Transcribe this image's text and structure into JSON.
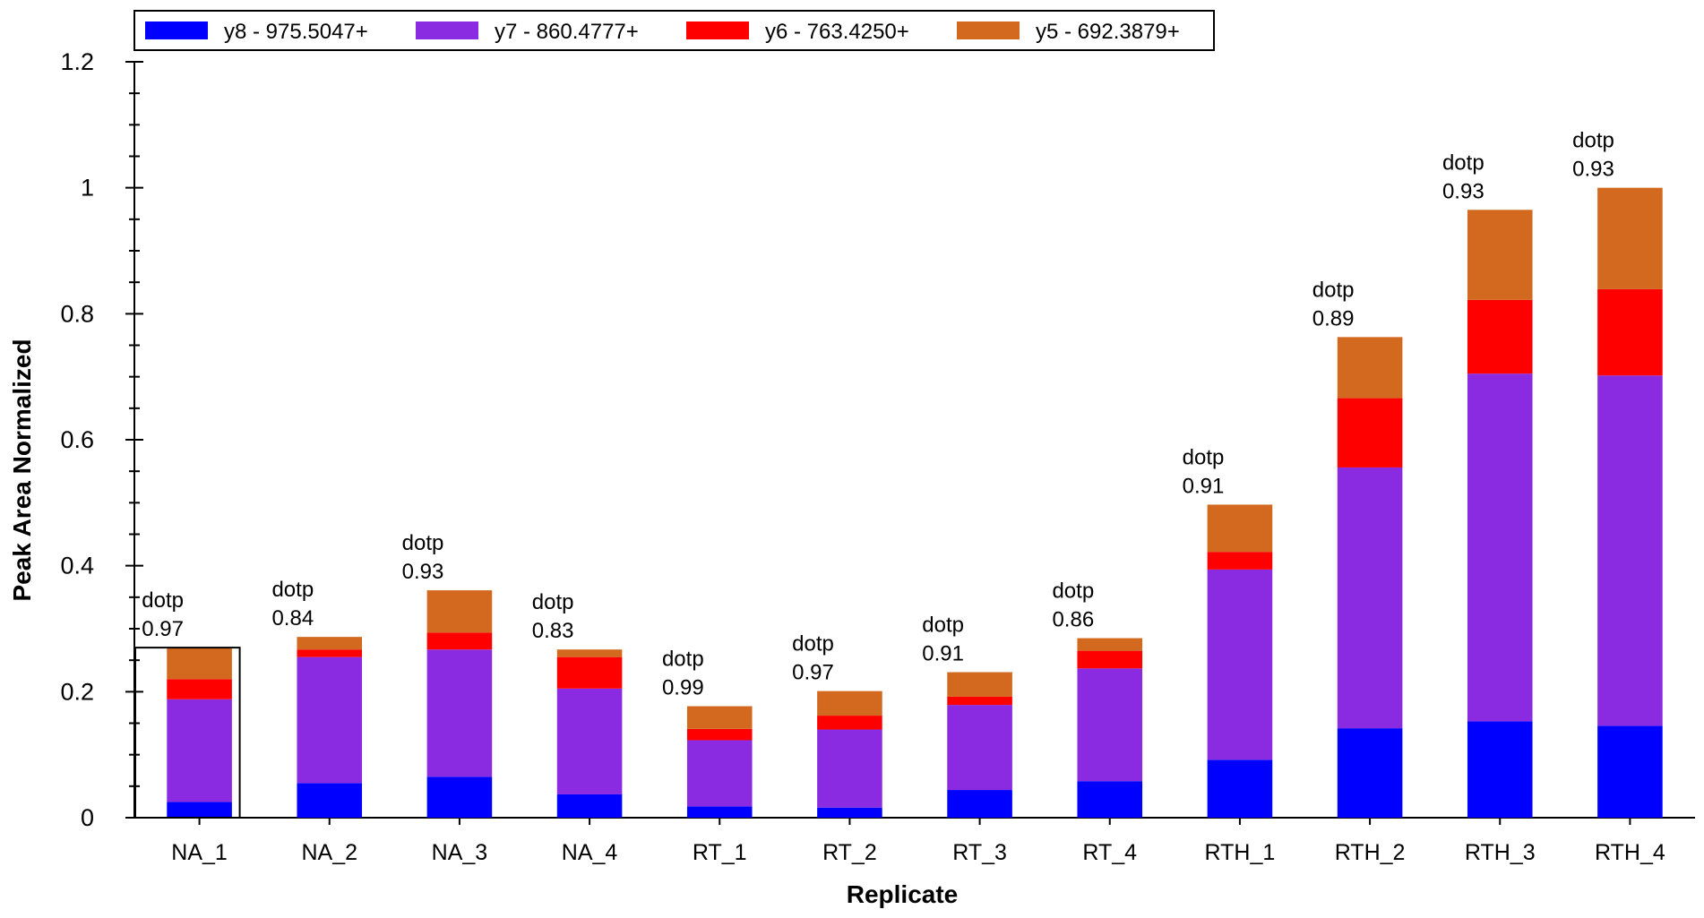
{
  "chart_data": {
    "type": "bar",
    "stacked": true,
    "title": "",
    "xlabel": "Replicate",
    "ylabel": "Peak Area Normalized",
    "ylim": [
      0,
      1.2
    ],
    "yticks": [
      "0",
      "0.2",
      "0.4",
      "0.6",
      "0.8",
      "1",
      "1.2"
    ],
    "categories": [
      "NA_1",
      "NA_2",
      "NA_3",
      "NA_4",
      "RT_1",
      "RT_2",
      "RT_3",
      "RT_4",
      "RTH_1",
      "RTH_2",
      "RTH_3",
      "RTH_4"
    ],
    "series": [
      {
        "name": "y8 - 975.5047+",
        "color": "#0000ff",
        "values": [
          0.025,
          0.055,
          0.065,
          0.037,
          0.018,
          0.016,
          0.044,
          0.058,
          0.092,
          0.142,
          0.153,
          0.146
        ]
      },
      {
        "name": "y7 - 860.4777+",
        "color": "#8a2be2",
        "values": [
          0.163,
          0.2,
          0.202,
          0.168,
          0.105,
          0.124,
          0.135,
          0.179,
          0.302,
          0.414,
          0.552,
          0.556
        ]
      },
      {
        "name": "y6 - 763.4250+",
        "color": "#ff0000",
        "values": [
          0.032,
          0.012,
          0.027,
          0.05,
          0.018,
          0.022,
          0.013,
          0.028,
          0.028,
          0.11,
          0.117,
          0.137
        ]
      },
      {
        "name": "y5 - 692.3879+",
        "color": "#d2691e",
        "values": [
          0.05,
          0.02,
          0.067,
          0.012,
          0.036,
          0.039,
          0.039,
          0.02,
          0.075,
          0.097,
          0.143,
          0.161
        ]
      }
    ],
    "annotations": [
      {
        "line1": "dotp",
        "line2": "0.97"
      },
      {
        "line1": "dotp",
        "line2": "0.84"
      },
      {
        "line1": "dotp",
        "line2": "0.93"
      },
      {
        "line1": "dotp",
        "line2": "0.83"
      },
      {
        "line1": "dotp",
        "line2": "0.99"
      },
      {
        "line1": "dotp",
        "line2": "0.97"
      },
      {
        "line1": "dotp",
        "line2": "0.91"
      },
      {
        "line1": "dotp",
        "line2": "0.86"
      },
      {
        "line1": "dotp",
        "line2": "0.91"
      },
      {
        "line1": "dotp",
        "line2": "0.89"
      },
      {
        "line1": "dotp",
        "line2": "0.93"
      },
      {
        "line1": "dotp",
        "line2": "0.93"
      }
    ],
    "selected_category": "NA_1",
    "legend": "top",
    "grid": false
  }
}
